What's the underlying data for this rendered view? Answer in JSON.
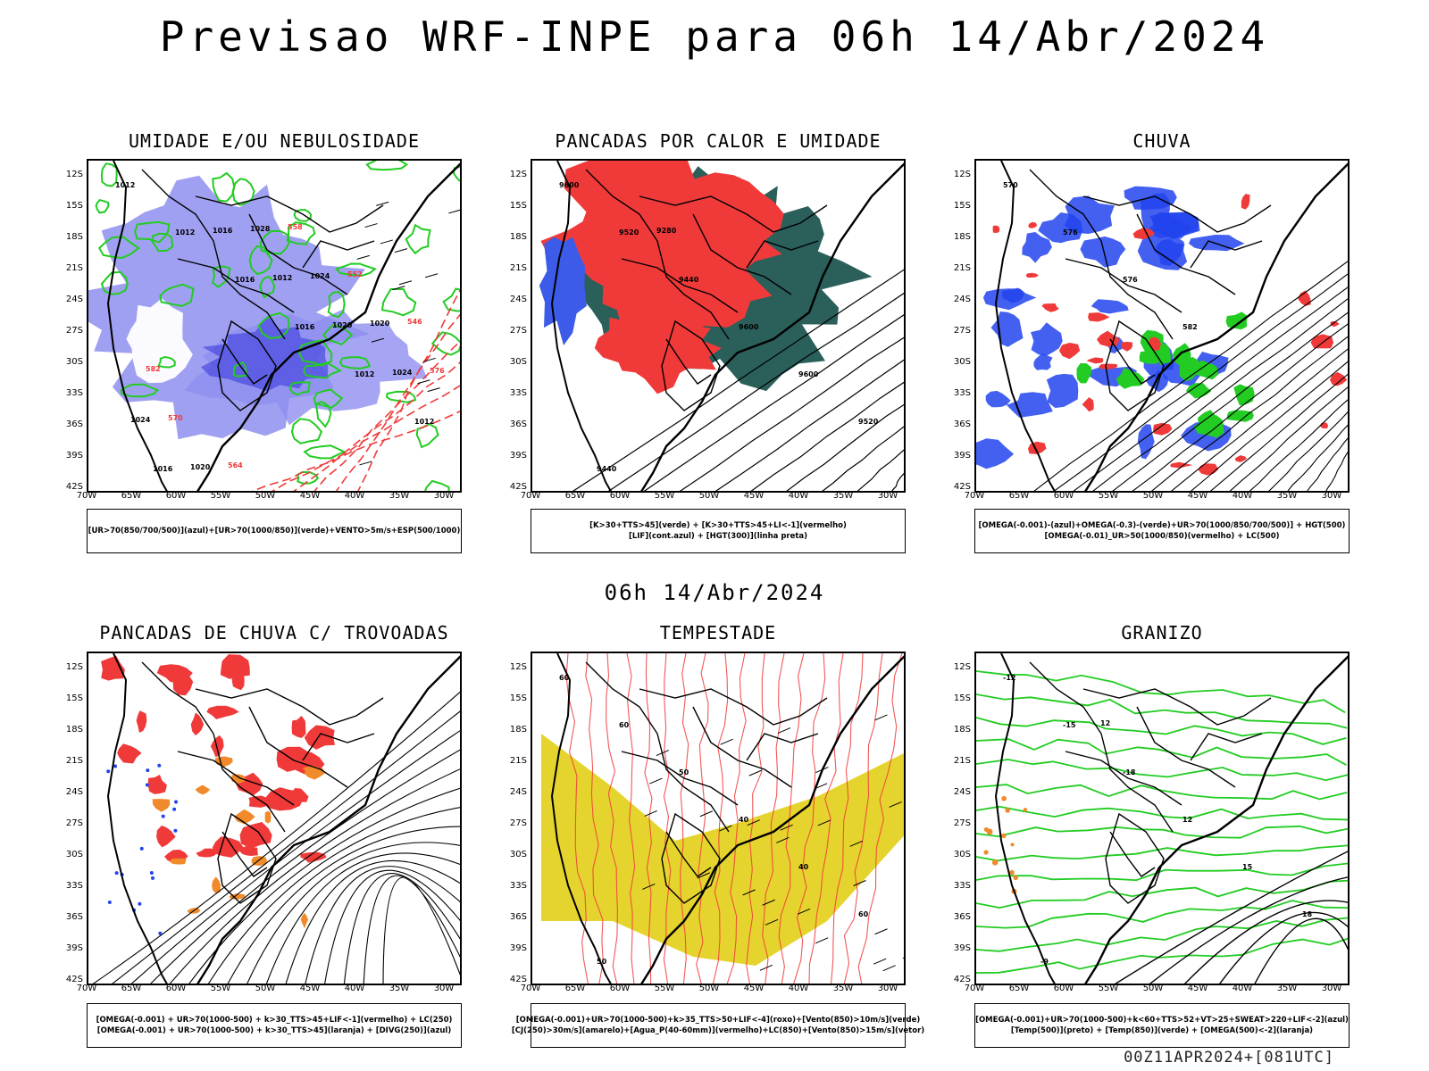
{
  "title": "Previsao WRF-INPE  para 06h 14/Abr/2024",
  "mid_title": "06h 14/Abr/2024",
  "footer": "00Z11APR2024+[081UTC]",
  "axes": {
    "lat_labels": [
      "12S",
      "15S",
      "18S",
      "21S",
      "24S",
      "27S",
      "30S",
      "33S",
      "36S",
      "39S",
      "42S"
    ],
    "lon_labels": [
      "70W",
      "65W",
      "60W",
      "55W",
      "50W",
      "45W",
      "40W",
      "35W",
      "30W"
    ]
  },
  "colors": {
    "humidity_blue": "#8f8ff0",
    "humidity_blue_dark": "#4a4ae0",
    "green_contour": "#22cc22",
    "red": "#f03a3a",
    "teal": "#2a5f5a",
    "yellow": "#e6d42e",
    "orange": "#f08a2a",
    "blue_dots": "#2244ee"
  },
  "panels": [
    {
      "title": "UMIDADE E/OU NEBULOSIDADE",
      "legend": [
        "[UR>70(850/700/500)](azul)+[UR>70(1000/850)](verde)+VENTO>5m/s+ESP(500/1000)"
      ],
      "contour_labels": [
        "1012",
        "1012",
        "1016",
        "1016",
        "1012",
        "1012",
        "1016",
        "1016",
        "1012",
        "1020",
        "1024",
        "1024",
        "1020",
        "1028",
        "1024",
        "1020",
        "576",
        "570",
        "564",
        "558",
        "552",
        "546",
        "582"
      ]
    },
    {
      "title": "PANCADAS POR CALOR E UMIDADE",
      "legend": [
        "[K>30+TTS>45](verde) + [K>30+TTS>45+LI<-1](vermelho)",
        "[LIF](cont.azul) + [HGT(300)](linha preta)"
      ],
      "contour_labels": [
        "9600",
        "9520",
        "9440",
        "9600",
        "9600",
        "9520",
        "9440",
        "9280"
      ]
    },
    {
      "title": "CHUVA",
      "legend": [
        "[OMEGA(-0.001)-(azul)+OMEGA(-0.3)-(verde)+UR>70(1000/850/700/500)] + HGT(500)",
        "[OMEGA(-0.01)_UR>50(1000/850)(vermelho) + LC(500)"
      ],
      "contour_labels": [
        "570",
        "576",
        "576",
        "582"
      ]
    },
    {
      "title": "PANCADAS DE CHUVA C/ TROVOADAS",
      "legend": [
        "[OMEGA(-0.001) + UR>70(1000-500) + k>30_TTS>45+LIF<-1](vermelho) + LC(250)",
        "[OMEGA(-0.001) + UR>70(1000-500) + k>30_TTS>45](laranja) + [DIVG(250)](azul)"
      ],
      "contour_labels": []
    },
    {
      "title": "TEMPESTADE",
      "legend": [
        "[OMEGA(-0.001)+UR>70(1000-500)+k>35_TTS>50+LIF<-4](roxo)+[Vento(850)>10m/s](verde)",
        "[CJ(250)>30m/s](amarelo)+[Agua_P(40-60mm)](vermelho)+LC(850)+[Vento(850)>15m/s](vetor)"
      ],
      "contour_labels": [
        "60",
        "60",
        "50",
        "40",
        "40",
        "60",
        "50"
      ]
    },
    {
      "title": "GRANIZO",
      "legend": [
        "[OMEGA(-0.001)+UR>70(1000-500)+k<60+TTS>52+VT>25+SWEAT>220+LIF<-2](azul)",
        "[Temp(500)](preto) + [Temp(850)](verde) + [OMEGA(500)<-2](laranja)"
      ],
      "contour_labels": [
        "-12",
        "-15",
        "-18",
        "12",
        "15",
        "18",
        "-9",
        "12"
      ]
    }
  ]
}
